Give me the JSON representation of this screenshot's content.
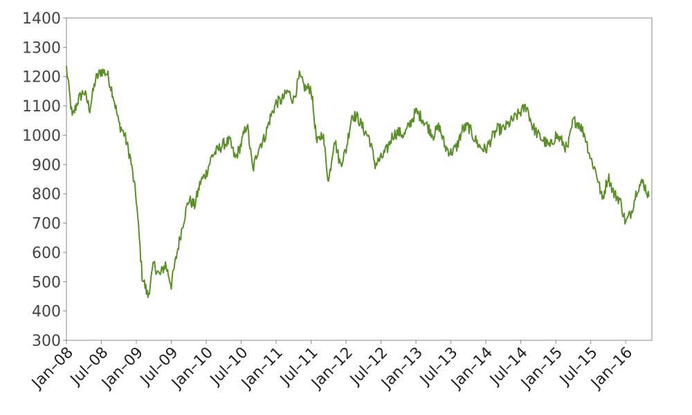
{
  "chart_data": {
    "type": "line",
    "title": "",
    "xlabel": "",
    "ylabel": "",
    "ylim": [
      300,
      1400
    ],
    "xlim": [
      "2008-01",
      "2016-05"
    ],
    "grid": false,
    "legend": "none",
    "y_ticks": [
      300,
      400,
      500,
      600,
      700,
      800,
      900,
      1000,
      1100,
      1200,
      1300,
      1400
    ],
    "x_ticks": [
      "Jan–08",
      "Jul–08",
      "Jan–09",
      "Jul–09",
      "Jan–10",
      "Jul–10",
      "Jan–11",
      "Jul–11",
      "Jan–12",
      "Jul–12",
      "Jan–13",
      "Jul–13",
      "Jan–14",
      "Jul–14",
      "Jan–15",
      "Jul–15",
      "Jan–16"
    ],
    "colors": {
      "line": "#5a8f29",
      "axis": "#888888",
      "tick_text": "#444444"
    },
    "series": [
      {
        "x": [
          "2008-01",
          "2008-02",
          "2008-03",
          "2008-04",
          "2008-05",
          "2008-06",
          "2008-07",
          "2008-08",
          "2008-09",
          "2008-10",
          "2008-11",
          "2008-12",
          "2009-01",
          "2009-02",
          "2009-03",
          "2009-04",
          "2009-05",
          "2009-06",
          "2009-07",
          "2009-08",
          "2009-09",
          "2009-10",
          "2009-11",
          "2009-12",
          "2010-01",
          "2010-02",
          "2010-03",
          "2010-04",
          "2010-05",
          "2010-06",
          "2010-07",
          "2010-08",
          "2010-09",
          "2010-10",
          "2010-11",
          "2010-12",
          "2011-01",
          "2011-02",
          "2011-03",
          "2011-04",
          "2011-05",
          "2011-06",
          "2011-07",
          "2011-08",
          "2011-09",
          "2011-10",
          "2011-11",
          "2011-12",
          "2012-01",
          "2012-02",
          "2012-03",
          "2012-04",
          "2012-05",
          "2012-06",
          "2012-07",
          "2012-08",
          "2012-09",
          "2012-10",
          "2012-11",
          "2012-12",
          "2013-01",
          "2013-02",
          "2013-03",
          "2013-04",
          "2013-05",
          "2013-06",
          "2013-07",
          "2013-08",
          "2013-09",
          "2013-10",
          "2013-11",
          "2013-12",
          "2014-01",
          "2014-02",
          "2014-03",
          "2014-04",
          "2014-05",
          "2014-06",
          "2014-07",
          "2014-08",
          "2014-09",
          "2014-10",
          "2014-11",
          "2014-12",
          "2015-01",
          "2015-02",
          "2015-03",
          "2015-04",
          "2015-05",
          "2015-06",
          "2015-07",
          "2015-08",
          "2015-09",
          "2015-10",
          "2015-11",
          "2015-12",
          "2016-01",
          "2016-02",
          "2016-03",
          "2016-04",
          "2016-05"
        ],
        "values": [
          1230,
          1060,
          1120,
          1150,
          1090,
          1190,
          1220,
          1210,
          1140,
          1040,
          1000,
          920,
          780,
          520,
          450,
          560,
          520,
          560,
          490,
          600,
          700,
          780,
          760,
          840,
          870,
          930,
          950,
          970,
          980,
          920,
          970,
          1040,
          880,
          960,
          990,
          1060,
          1110,
          1120,
          1150,
          1120,
          1200,
          1160,
          1160,
          970,
          1010,
          840,
          990,
          900,
          950,
          1070,
          1060,
          1020,
          990,
          900,
          920,
          950,
          1000,
          1010,
          1000,
          1040,
          1080,
          1060,
          1030,
          1000,
          1030,
          960,
          940,
          960,
          1020,
          1030,
          990,
          960,
          950,
          990,
          1020,
          1020,
          1040,
          1060,
          1080,
          1100,
          1030,
          1000,
          980,
          960,
          1000,
          980,
          950,
          1050,
          1040,
          1000,
          920,
          870,
          780,
          860,
          800,
          780,
          700,
          740,
          820,
          840,
          790
        ]
      }
    ]
  }
}
